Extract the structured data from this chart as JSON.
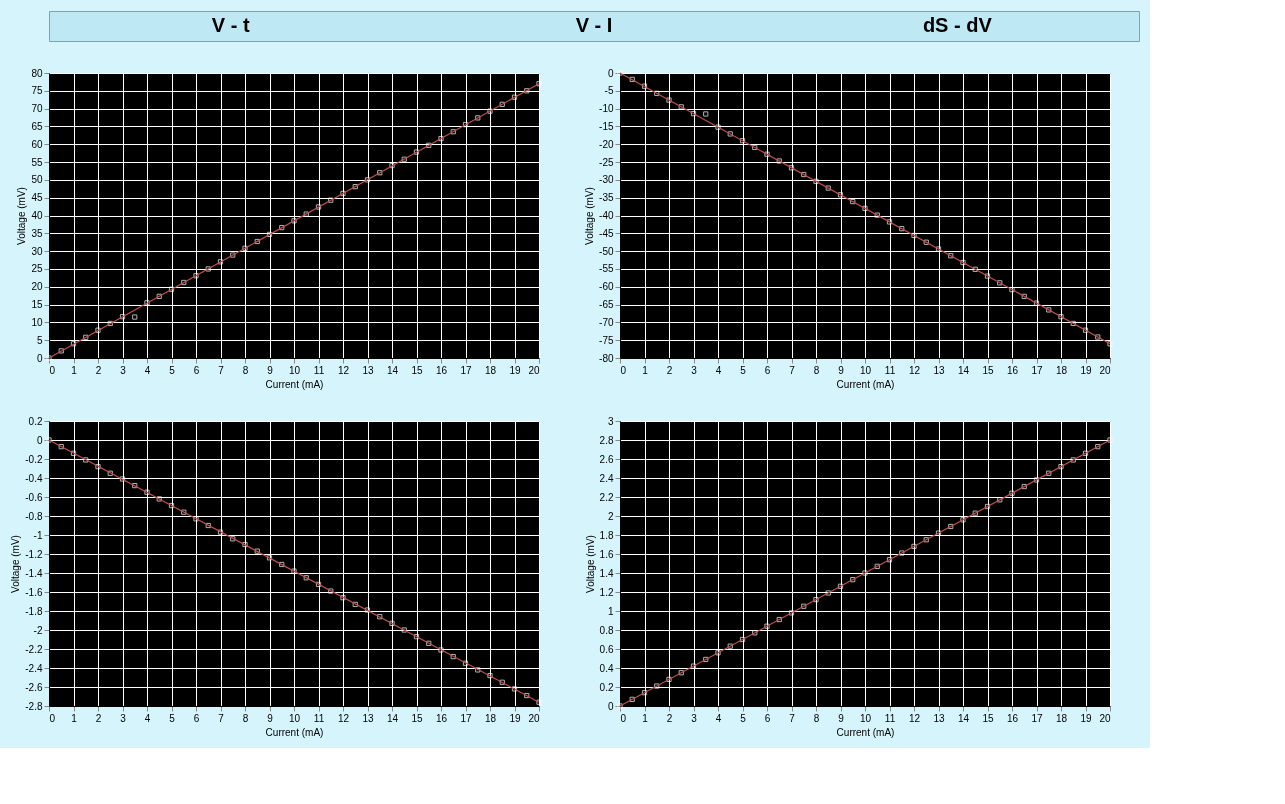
{
  "chart_data": [
    {
      "type": "other",
      "annotations": [
        "V - t",
        "V - I",
        "dS - dV"
      ]
    },
    {
      "type": "scatter",
      "xlabel": "Current (mA)",
      "ylabel": "Voltage (mV)",
      "xlim": [
        0,
        20
      ],
      "xticks": [
        0,
        1,
        2,
        3,
        4,
        5,
        6,
        7,
        8,
        9,
        10,
        11,
        12,
        13,
        14,
        15,
        16,
        17,
        18,
        19,
        20
      ],
      "ylim": [
        0,
        80
      ],
      "yticks": [
        0,
        5,
        10,
        15,
        20,
        25,
        30,
        35,
        40,
        45,
        50,
        55,
        60,
        65,
        70,
        75,
        80
      ],
      "grid": true,
      "marker": "square",
      "series": [
        {
          "type": "scatter",
          "color": "#ffffff",
          "x": [
            0,
            0.5,
            1,
            1.5,
            2,
            2.5,
            3,
            3.5,
            4,
            4.5,
            5,
            5.5,
            6,
            6.5,
            7,
            7.5,
            8,
            8.5,
            9,
            9.5,
            10,
            10.5,
            11,
            11.5,
            12,
            12.5,
            13,
            13.5,
            14,
            14.5,
            15,
            15.5,
            16,
            16.5,
            17,
            17.5,
            18,
            18.5,
            19,
            19.5,
            20
          ],
          "values": [
            0,
            2,
            4,
            5.8,
            7.8,
            9.7,
            11.6,
            11.5,
            15.5,
            17.3,
            19.3,
            21.2,
            23.1,
            25,
            27,
            28.9,
            30.8,
            32.7,
            34.7,
            36.6,
            38.5,
            40.4,
            42.4,
            44.3,
            46.2,
            48.1,
            50,
            52,
            54,
            55.8,
            57.8,
            59.7,
            61.6,
            63.5,
            65.5,
            67.4,
            69.3,
            71.2,
            73.2,
            75,
            77
          ]
        },
        {
          "type": "line",
          "color": "#c0504d",
          "marker": "none",
          "x": [
            0,
            20
          ],
          "values": [
            0,
            77
          ]
        }
      ]
    },
    {
      "type": "scatter",
      "xlabel": "Current (mA)",
      "ylabel": "Voltage (mV)",
      "xlim": [
        0,
        20
      ],
      "xticks": [
        0,
        1,
        2,
        3,
        4,
        5,
        6,
        7,
        8,
        9,
        10,
        11,
        12,
        13,
        14,
        15,
        16,
        17,
        18,
        19,
        20
      ],
      "ylim": [
        -80,
        0
      ],
      "yticks": [
        -80,
        -75,
        -70,
        -65,
        -60,
        -55,
        -50,
        -45,
        -40,
        -35,
        -30,
        -25,
        -20,
        -15,
        -10,
        -5,
        0
      ],
      "grid": true,
      "marker": "square",
      "series": [
        {
          "type": "scatter",
          "color": "#ffffff",
          "x": [
            0,
            0.5,
            1,
            1.5,
            2,
            2.5,
            3,
            3.5,
            4,
            4.5,
            5,
            5.5,
            6,
            6.5,
            7,
            7.5,
            8,
            8.5,
            9,
            9.5,
            10,
            10.5,
            11,
            11.5,
            12,
            12.5,
            13,
            13.5,
            14,
            14.5,
            15,
            15.5,
            16,
            16.5,
            17,
            17.5,
            18,
            18.5,
            19,
            19.5,
            20
          ],
          "values": [
            0,
            -1.8,
            -3.7,
            -5.7,
            -7.6,
            -9.5,
            -11.4,
            -11.5,
            -15.2,
            -17.1,
            -19,
            -20.9,
            -22.8,
            -24.7,
            -26.6,
            -28.5,
            -30.4,
            -32.3,
            -34.2,
            -36.1,
            -38,
            -39.9,
            -41.8,
            -43.7,
            -45.6,
            -47.5,
            -49.4,
            -51.3,
            -53.2,
            -55.1,
            -57,
            -58.9,
            -60.8,
            -62.7,
            -64.6,
            -66.5,
            -68.4,
            -70.3,
            -72.2,
            -74.1,
            -76
          ]
        },
        {
          "type": "line",
          "color": "#c0504d",
          "marker": "none",
          "x": [
            0,
            20
          ],
          "values": [
            0,
            -76
          ]
        }
      ]
    },
    {
      "type": "scatter",
      "xlabel": "Current (mA)",
      "ylabel": "Voltage (mV)",
      "xlim": [
        0,
        20
      ],
      "xticks": [
        0,
        1,
        2,
        3,
        4,
        5,
        6,
        7,
        8,
        9,
        10,
        11,
        12,
        13,
        14,
        15,
        16,
        17,
        18,
        19,
        20
      ],
      "ylim": [
        -2.8,
        0.2
      ],
      "yticks": [
        -2.8,
        -2.6,
        -2.4,
        -2.2,
        -2,
        -1.8,
        -1.6,
        -1.4,
        -1.2,
        -1,
        -0.8,
        -0.6,
        -0.4,
        -0.2,
        0,
        0.2
      ],
      "grid": true,
      "marker": "square",
      "series": [
        {
          "type": "scatter",
          "color": "#ffffff",
          "x": [
            0,
            0.5,
            1,
            1.5,
            2,
            2.5,
            3,
            3.5,
            4,
            4.5,
            5,
            5.5,
            6,
            6.5,
            7,
            7.5,
            8,
            8.5,
            9,
            9.5,
            10,
            10.5,
            11,
            11.5,
            12,
            12.5,
            13,
            13.5,
            14,
            14.5,
            15,
            15.5,
            16,
            16.5,
            17,
            17.5,
            18,
            18.5,
            19,
            19.5,
            20
          ],
          "values": [
            0,
            -0.07,
            -0.14,
            -0.21,
            -0.28,
            -0.35,
            -0.41,
            -0.48,
            -0.55,
            -0.62,
            -0.69,
            -0.76,
            -0.83,
            -0.9,
            -0.97,
            -1.04,
            -1.1,
            -1.17,
            -1.24,
            -1.31,
            -1.38,
            -1.45,
            -1.52,
            -1.59,
            -1.66,
            -1.73,
            -1.79,
            -1.86,
            -1.93,
            -2,
            -2.07,
            -2.14,
            -2.21,
            -2.28,
            -2.35,
            -2.42,
            -2.48,
            -2.55,
            -2.62,
            -2.69,
            -2.76
          ]
        },
        {
          "type": "line",
          "color": "#c0504d",
          "marker": "none",
          "x": [
            0,
            20
          ],
          "values": [
            0,
            -2.76
          ]
        }
      ]
    },
    {
      "type": "scatter",
      "xlabel": "Current (mA)",
      "ylabel": "Voltage (mV)",
      "xlim": [
        0,
        20
      ],
      "xticks": [
        0,
        1,
        2,
        3,
        4,
        5,
        6,
        7,
        8,
        9,
        10,
        11,
        12,
        13,
        14,
        15,
        16,
        17,
        18,
        19,
        20
      ],
      "ylim": [
        0,
        3
      ],
      "yticks": [
        0,
        0.2,
        0.4,
        0.6,
        0.8,
        1,
        1.2,
        1.4,
        1.6,
        1.8,
        2,
        2.2,
        2.4,
        2.6,
        2.8,
        3
      ],
      "grid": true,
      "marker": "square",
      "series": [
        {
          "type": "scatter",
          "color": "#ffffff",
          "x": [
            0,
            0.5,
            1,
            1.5,
            2,
            2.5,
            3,
            3.5,
            4,
            4.5,
            5,
            5.5,
            6,
            6.5,
            7,
            7.5,
            8,
            8.5,
            9,
            9.5,
            10,
            10.5,
            11,
            11.5,
            12,
            12.5,
            13,
            13.5,
            14,
            14.5,
            15,
            15.5,
            16,
            16.5,
            17,
            17.5,
            18,
            18.5,
            19,
            19.5,
            20
          ],
          "values": [
            0,
            0.07,
            0.14,
            0.21,
            0.28,
            0.35,
            0.42,
            0.49,
            0.56,
            0.63,
            0.7,
            0.77,
            0.84,
            0.91,
            0.98,
            1.05,
            1.12,
            1.19,
            1.26,
            1.33,
            1.4,
            1.47,
            1.54,
            1.61,
            1.68,
            1.75,
            1.82,
            1.89,
            1.96,
            2.03,
            2.1,
            2.17,
            2.24,
            2.31,
            2.38,
            2.45,
            2.52,
            2.59,
            2.66,
            2.73,
            2.8
          ]
        },
        {
          "type": "line",
          "color": "#c0504d",
          "marker": "none",
          "x": [
            0,
            20
          ],
          "values": [
            0,
            2.8
          ]
        }
      ]
    }
  ]
}
